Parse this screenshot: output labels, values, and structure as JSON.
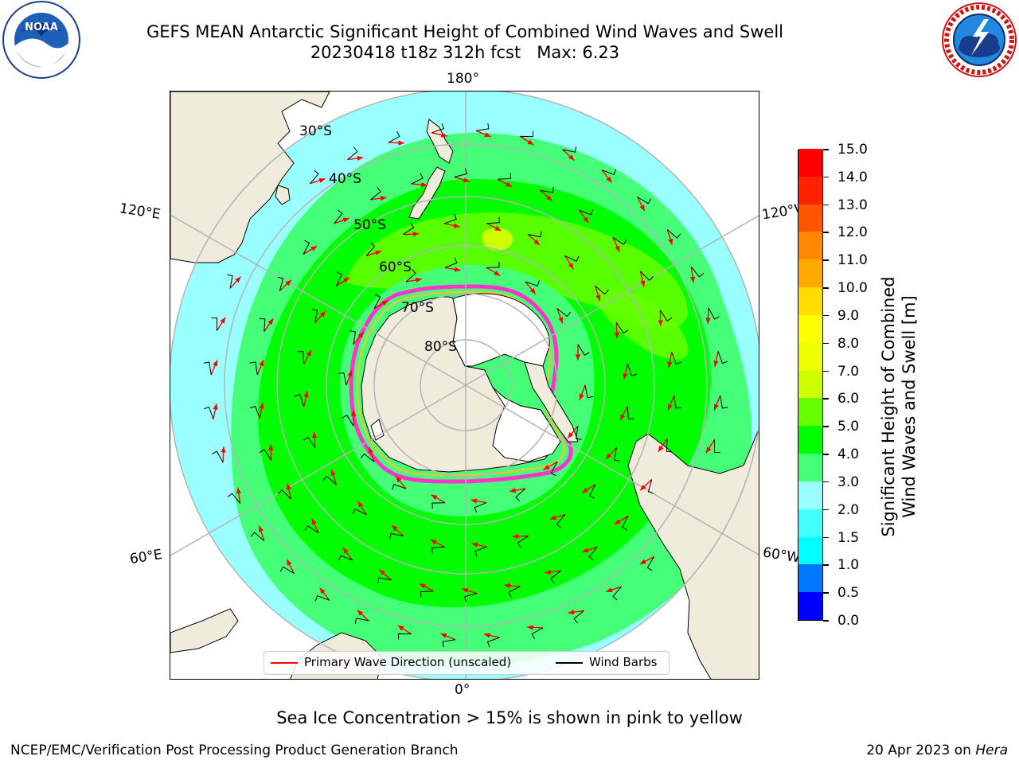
{
  "header": {
    "title_line1": "GEFS MEAN Antarctic Significant Height of Combined Wind Waves and Swell",
    "title_line2": "20230418 t18z 312h fcst   Max: 6.23"
  },
  "logos": {
    "left": {
      "icon": "noaa-logo",
      "text": "NOAA",
      "ring_text": "NATIONAL OCEANIC AND ATMOSPHERIC ADMINISTRATION · U.S. DEPARTMENT OF COMMERCE"
    },
    "right": {
      "icon": "nws-logo",
      "ring_text": "NATIONAL WEATHER SERVICE"
    }
  },
  "map": {
    "projection": "south-polar-stereographic",
    "lon_labels": {
      "top": "180°",
      "bottom": "0°",
      "upper_left": "120°E",
      "upper_right": "120°W",
      "lower_left": "60°E",
      "lower_right": "60°W"
    },
    "lat_labels": [
      "30°S",
      "40°S",
      "50°S",
      "60°S",
      "70°S",
      "80°S"
    ],
    "colors": {
      "land": "#efecdc",
      "ice_sheet": "#ffffff",
      "graticule": "#b4b4b4",
      "sea_ice_edge": "#ff33cc",
      "sea_ice_inner": "#ffbb33",
      "arrow": "#ff0000",
      "barb": "#000000"
    }
  },
  "colorbar": {
    "label": "Significant Height of Combined\nWind Waves and Swell [m]",
    "levels": [
      "0.0",
      "0.5",
      "1.0",
      "1.5",
      "2.0",
      "3.0",
      "4.0",
      "5.0",
      "6.0",
      "7.0",
      "8.0",
      "9.0",
      "10.0",
      "11.0",
      "12.0",
      "13.0",
      "14.0",
      "15.0"
    ],
    "colors": [
      "#0000ff",
      "#0077ff",
      "#00ffff",
      "#44ffff",
      "#99ffff",
      "#44ff77",
      "#00ff00",
      "#66ff00",
      "#ccff00",
      "#eeff00",
      "#ffff00",
      "#ffdd00",
      "#ffaa00",
      "#ff8800",
      "#ff5500",
      "#ff2200",
      "#ff0000"
    ]
  },
  "legend": {
    "primary_wave": "Primary Wave Direction (unscaled)",
    "wind_barbs": "Wind Barbs",
    "primary_wave_color": "#ff0000",
    "wind_barbs_color": "#000000"
  },
  "footer": {
    "note": "Sea Ice Concentration > 15% is shown in pink to yellow",
    "left": "NCEP/EMC/Verification Post Processing Product Generation Branch",
    "right_date": "20 Apr 2023 on ",
    "right_machine": "Hera"
  }
}
